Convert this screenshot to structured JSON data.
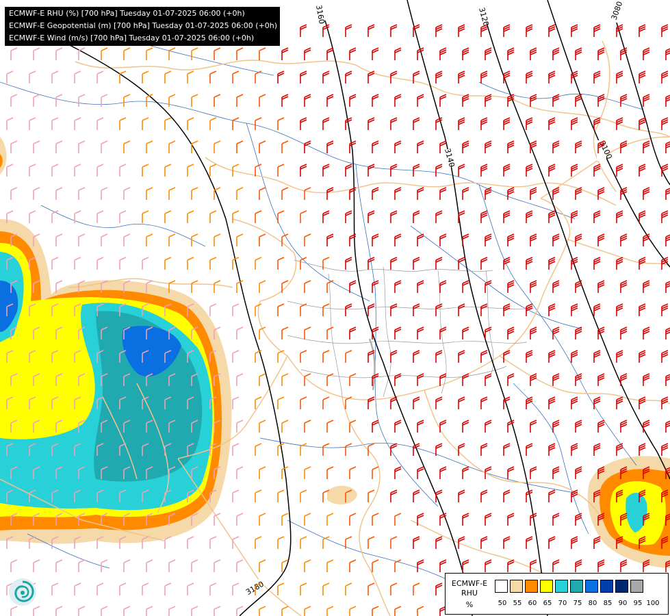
{
  "titles": [
    "ECMWF-E RHU (%) [700 hPa] Tuesday 01-07-2025 06:00 (+0h)",
    "ECMWF-E Geopotential (m) [700 hPa] Tuesday 01-07-2025 06:00 (+0h)",
    "ECMWF-E Wind (m/s) [700 hPa] Tuesday 01-07-2025 06:00 (+0h)"
  ],
  "contours": [
    {
      "label": "3180"
    },
    {
      "label": "3160"
    },
    {
      "label": "3140"
    },
    {
      "label": "3120"
    },
    {
      "label": "3100"
    },
    {
      "label": "3080"
    }
  ],
  "legend": {
    "name_line1": "ECMWF-E",
    "name_line2": "RHU",
    "unit": "%",
    "ticks": [
      "50",
      "55",
      "60",
      "65",
      "70",
      "75",
      "80",
      "85",
      "90",
      "95",
      "100"
    ],
    "colors": [
      "#ffffff",
      "#f5d9a8",
      "#ff8a00",
      "#ffff00",
      "#28d0d8",
      "#20aab0",
      "#0a6fe0",
      "#0040a8",
      "#002870",
      "#a8a8a8",
      "#606060"
    ]
  },
  "colors": {
    "wind_strong": "#dd0000",
    "wind_medium": "#ff5500",
    "wind_light": "#ff8a00",
    "wind_weak": "#f0a0b8",
    "border": "#f0c48c",
    "river": "#3a70c0",
    "region": "#999999"
  },
  "icons": {
    "logo": "ecmwf-logo-icon"
  }
}
